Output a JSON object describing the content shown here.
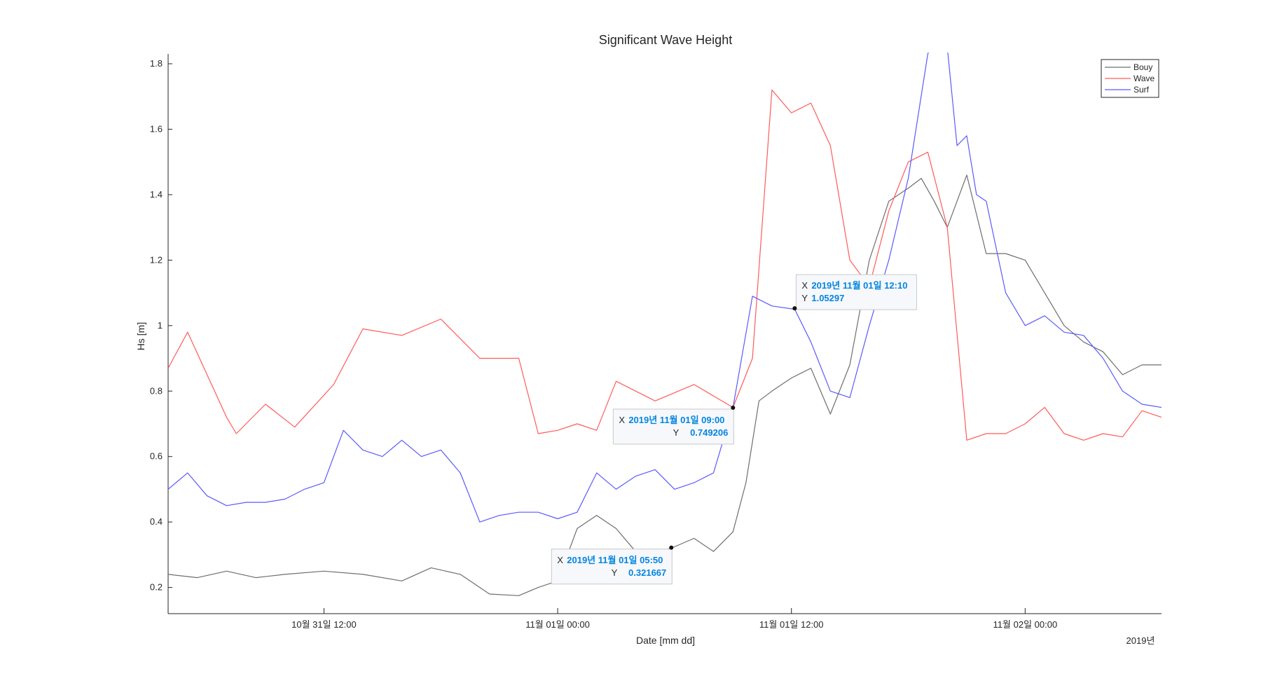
{
  "chart_data": {
    "type": "line",
    "title": "Significant Wave Height",
    "xlabel": "Date [mm dd]",
    "ylabel": "Hs [m]",
    "x_secondary_label": "2019년",
    "xlim": [
      "2019-10-31 04:00",
      "2019-11-02 07:00"
    ],
    "ylim": [
      0.12,
      1.83
    ],
    "x_ticks": [
      {
        "t": "2019-10-31 12:00",
        "label": "10월 31일 12:00"
      },
      {
        "t": "2019-11-01 00:00",
        "label": "11월 01일 00:00"
      },
      {
        "t": "2019-11-01 12:00",
        "label": "11월 01일 12:00"
      },
      {
        "t": "2019-11-02 00:00",
        "label": "11월 02일 00:00"
      }
    ],
    "y_ticks": [
      0.2,
      0.4,
      0.6,
      0.8,
      1,
      1.2,
      1.4,
      1.6,
      1.8
    ],
    "y_tick_labels": [
      "0.2",
      "0.4",
      "0.6",
      "0.8",
      "1",
      "1.2",
      "1.4",
      "1.6",
      "1.8"
    ],
    "grid": false,
    "legend": "top-right",
    "series": [
      {
        "name": "Bouy",
        "color": "#6e6e6e",
        "x": [
          "2019-10-31 04:00",
          "2019-10-31 05:30",
          "2019-10-31 07:00",
          "2019-10-31 08:30",
          "2019-10-31 10:00",
          "2019-10-31 12:00",
          "2019-10-31 14:00",
          "2019-10-31 16:00",
          "2019-10-31 17:30",
          "2019-10-31 19:00",
          "2019-10-31 20:30",
          "2019-10-31 22:00",
          "2019-10-31 23:00",
          "2019-11-01 00:00",
          "2019-11-01 01:00",
          "2019-11-01 02:00",
          "2019-11-01 03:00",
          "2019-11-01 04:00",
          "2019-11-01 04:40",
          "2019-11-01 05:50",
          "2019-11-01 07:00",
          "2019-11-01 08:00",
          "2019-11-01 09:00",
          "2019-11-01 09:40",
          "2019-11-01 10:20",
          "2019-11-01 11:00",
          "2019-11-01 12:00",
          "2019-11-01 13:00",
          "2019-11-01 14:00",
          "2019-11-01 15:00",
          "2019-11-01 16:00",
          "2019-11-01 17:00",
          "2019-11-01 18:00",
          "2019-11-01 18:40",
          "2019-11-01 19:20",
          "2019-11-01 20:00",
          "2019-11-01 21:00",
          "2019-11-01 22:00",
          "2019-11-01 23:00",
          "2019-11-02 00:00",
          "2019-11-02 01:00",
          "2019-11-02 02:00",
          "2019-11-02 03:00",
          "2019-11-02 04:00",
          "2019-11-02 05:00",
          "2019-11-02 06:00",
          "2019-11-02 07:00"
        ],
        "y": [
          0.24,
          0.23,
          0.25,
          0.23,
          0.24,
          0.25,
          0.24,
          0.22,
          0.26,
          0.24,
          0.18,
          0.175,
          0.2,
          0.22,
          0.38,
          0.42,
          0.38,
          0.31,
          0.3,
          0.32,
          0.35,
          0.31,
          0.37,
          0.52,
          0.77,
          0.8,
          0.84,
          0.87,
          0.73,
          0.88,
          1.2,
          1.38,
          1.42,
          1.45,
          1.38,
          1.3,
          1.46,
          1.22,
          1.22,
          1.2,
          1.1,
          1.0,
          0.95,
          0.92,
          0.85,
          0.88,
          0.88
        ]
      },
      {
        "name": "Wave",
        "color": "#ff5a5a",
        "x": [
          "2019-10-31 04:00",
          "2019-10-31 05:00",
          "2019-10-31 06:00",
          "2019-10-31 07:00",
          "2019-10-31 07:30",
          "2019-10-31 09:00",
          "2019-10-31 10:30",
          "2019-10-31 12:30",
          "2019-10-31 14:00",
          "2019-10-31 16:00",
          "2019-10-31 18:00",
          "2019-10-31 20:00",
          "2019-10-31 22:00",
          "2019-10-31 23:00",
          "2019-11-01 00:00",
          "2019-11-01 01:00",
          "2019-11-01 02:00",
          "2019-11-01 03:00",
          "2019-11-01 05:00",
          "2019-11-01 07:00",
          "2019-11-01 09:00",
          "2019-11-01 10:00",
          "2019-11-01 11:00",
          "2019-11-01 12:00",
          "2019-11-01 13:00",
          "2019-11-01 14:00",
          "2019-11-01 15:00",
          "2019-11-01 16:00",
          "2019-11-01 17:00",
          "2019-11-01 18:00",
          "2019-11-01 19:00",
          "2019-11-01 20:00",
          "2019-11-01 21:00",
          "2019-11-01 22:00",
          "2019-11-01 23:00",
          "2019-11-02 00:00",
          "2019-11-02 01:00",
          "2019-11-02 02:00",
          "2019-11-02 03:00",
          "2019-11-02 04:00",
          "2019-11-02 05:00",
          "2019-11-02 06:00",
          "2019-11-02 07:00"
        ],
        "y": [
          0.87,
          0.98,
          0.85,
          0.72,
          0.67,
          0.76,
          0.69,
          0.82,
          0.99,
          0.97,
          1.02,
          0.9,
          0.9,
          0.67,
          0.68,
          0.7,
          0.68,
          0.83,
          0.77,
          0.82,
          0.75,
          0.9,
          1.72,
          1.65,
          1.68,
          1.55,
          1.2,
          1.12,
          1.35,
          1.5,
          1.53,
          1.3,
          0.65,
          0.67,
          0.67,
          0.7,
          0.75,
          0.67,
          0.65,
          0.67,
          0.66,
          0.74,
          0.72
        ]
      },
      {
        "name": "Surf",
        "color": "#5a5aff",
        "x": [
          "2019-10-31 04:00",
          "2019-10-31 05:00",
          "2019-10-31 06:00",
          "2019-10-31 07:00",
          "2019-10-31 08:00",
          "2019-10-31 09:00",
          "2019-10-31 10:00",
          "2019-10-31 11:00",
          "2019-10-31 12:00",
          "2019-10-31 13:00",
          "2019-10-31 14:00",
          "2019-10-31 15:00",
          "2019-10-31 16:00",
          "2019-10-31 17:00",
          "2019-10-31 18:00",
          "2019-10-31 19:00",
          "2019-10-31 20:00",
          "2019-10-31 21:00",
          "2019-10-31 22:00",
          "2019-10-31 23:00",
          "2019-11-01 00:00",
          "2019-11-01 01:00",
          "2019-11-01 02:00",
          "2019-11-01 03:00",
          "2019-11-01 04:00",
          "2019-11-01 05:00",
          "2019-11-01 06:00",
          "2019-11-01 07:00",
          "2019-11-01 08:00",
          "2019-11-01 09:00",
          "2019-11-01 10:00",
          "2019-11-01 11:00",
          "2019-11-01 12:10",
          "2019-11-01 13:00",
          "2019-11-01 14:00",
          "2019-11-01 15:00",
          "2019-11-01 16:00",
          "2019-11-01 17:00",
          "2019-11-01 18:00",
          "2019-11-01 19:00",
          "2019-11-01 19:30",
          "2019-11-01 20:00",
          "2019-11-01 20:30",
          "2019-11-01 21:00",
          "2019-11-01 21:30",
          "2019-11-01 22:00",
          "2019-11-01 23:00",
          "2019-11-02 00:00",
          "2019-11-02 01:00",
          "2019-11-02 02:00",
          "2019-11-02 03:00",
          "2019-11-02 04:00",
          "2019-11-02 05:00",
          "2019-11-02 06:00",
          "2019-11-02 07:00"
        ],
        "y": [
          0.5,
          0.55,
          0.48,
          0.45,
          0.46,
          0.46,
          0.47,
          0.5,
          0.52,
          0.68,
          0.62,
          0.6,
          0.65,
          0.6,
          0.62,
          0.55,
          0.4,
          0.42,
          0.43,
          0.43,
          0.41,
          0.43,
          0.55,
          0.5,
          0.54,
          0.56,
          0.5,
          0.52,
          0.55,
          0.75,
          1.09,
          1.06,
          1.05,
          0.95,
          0.8,
          0.78,
          1.0,
          1.2,
          1.45,
          1.83,
          1.9,
          1.85,
          1.55,
          1.58,
          1.4,
          1.38,
          1.1,
          1.0,
          1.03,
          0.98,
          0.97,
          0.9,
          0.8,
          0.76,
          0.75
        ]
      }
    ],
    "datatips": [
      {
        "t": "2019-11-01 05:50",
        "y": 0.321667,
        "x_label": "2019년 11월 01일 05:50",
        "y_label": "0.321667"
      },
      {
        "t": "2019-11-01 09:00",
        "y": 0.749206,
        "x_label": "2019년 11월 01일 09:00",
        "y_label": "0.749206"
      },
      {
        "t": "2019-11-01 12:10",
        "y": 1.05297,
        "x_label": "2019년 11월 01일 12:10",
        "y_label": "1.05297"
      }
    ]
  }
}
